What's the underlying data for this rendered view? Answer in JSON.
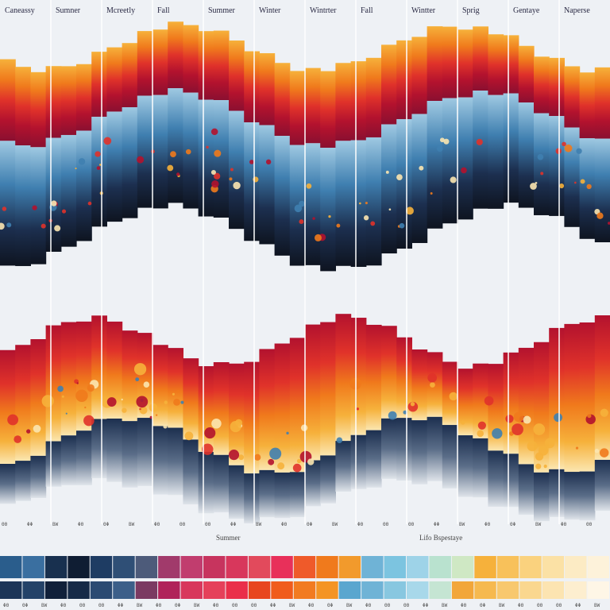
{
  "chart_data": {
    "type": "area",
    "title": "",
    "columns": [
      {
        "label": "Caneassy"
      },
      {
        "label": "Sumner"
      },
      {
        "label": "Mcreetly"
      },
      {
        "label": "Fall"
      },
      {
        "label": "Summer"
      },
      {
        "label": "Winter"
      },
      {
        "label": "Wintrter"
      },
      {
        "label": "Fall"
      },
      {
        "label": "Wintter"
      },
      {
        "label": "Sprig"
      },
      {
        "label": "Gentaye"
      },
      {
        "label": "Naperse"
      }
    ],
    "band_labels": [
      "Summer",
      "Lifo Bspestaye"
    ],
    "palette": {
      "deep_red": "#b3122e",
      "red": "#e0322a",
      "orange": "#f07a1c",
      "amber": "#f6b13b",
      "cream": "#fbe6b0",
      "light_blue": "#8fc4de",
      "blue": "#3f7fb0",
      "navy": "#1c2f4f",
      "black": "#0e1420",
      "background": "#eef1f5"
    },
    "swatch_rows": [
      [
        "#2a5d8c",
        "#3a6fa0",
        "#18304f",
        "#0f1d33",
        "#1e3c63",
        "#2f4f76",
        "#4d5b7a",
        "#a13a6b",
        "#c13d6e",
        "#c7345e",
        "#d8375c",
        "#e24a5c",
        "#e8305a",
        "#ef5a2a",
        "#f07a1c",
        "#f29a2c",
        "#6fb3d6",
        "#7cc4e0",
        "#9ed3e8",
        "#b9e2cf",
        "#cfe8c4",
        "#f6b13b",
        "#f8c15a",
        "#fad27e",
        "#fbe1a5",
        "#fcebc4",
        "#fdf2da"
      ],
      [
        "#1c3558",
        "#244268",
        "#10203a",
        "#162a47",
        "#2b4a72",
        "#3c5f89",
        "#7b3a62",
        "#b0235a",
        "#d8375c",
        "#e5405a",
        "#ea2f4a",
        "#e8461f",
        "#f05c1c",
        "#f27b21",
        "#f49424",
        "#5aa6cf",
        "#6fb3d6",
        "#88c7e0",
        "#a8d8ea",
        "#c5e5d3",
        "#f2a63a",
        "#f6b94f",
        "#f8c86e",
        "#fad78f",
        "#fce4b1",
        "#fdeecf",
        "#fef6e6"
      ]
    ],
    "tick_text": [
      "ΘΘ",
      "ΦΦ",
      "BW",
      "ΦΘ",
      "ΘΦ",
      "BW",
      "ΦΘ",
      "ΘΘ"
    ]
  }
}
